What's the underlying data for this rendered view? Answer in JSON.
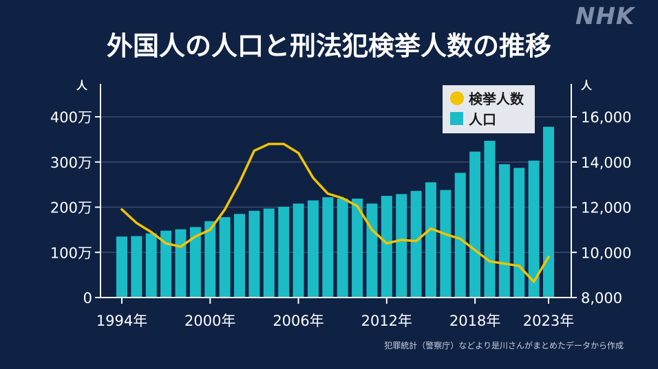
{
  "logo": "NHK",
  "title": "外国人の人口と刑法犯検挙人数の推移",
  "source": "犯罪統計（警察庁）などより是川さんがまとめたデータから作成",
  "colors": {
    "background": "#0f2244",
    "bars": "#1bbcc6",
    "line": "#f2c300",
    "axis": "#ffffff",
    "grid": "#3a4d6e",
    "legend_bg": "#e4e8ee"
  },
  "chart_data": {
    "type": "bar+line",
    "categories": [
      "1994年",
      "1995年",
      "1996年",
      "1997年",
      "1998年",
      "1999年",
      "2000年",
      "2001年",
      "2002年",
      "2003年",
      "2004年",
      "2005年",
      "2006年",
      "2007年",
      "2008年",
      "2009年",
      "2010年",
      "2011年",
      "2012年",
      "2013年",
      "2014年",
      "2015年",
      "2016年",
      "2017年",
      "2018年",
      "2019年",
      "2020年",
      "2021年",
      "2022年",
      "2023年"
    ],
    "x_tick_labels": [
      {
        "index": 0,
        "label": "1994年"
      },
      {
        "index": 6,
        "label": "2000年"
      },
      {
        "index": 12,
        "label": "2006年"
      },
      {
        "index": 18,
        "label": "2012年"
      },
      {
        "index": 24,
        "label": "2018年"
      },
      {
        "index": 29,
        "label": "2023年"
      }
    ],
    "y_left": {
      "unit": "人",
      "range": [
        0,
        4500000
      ],
      "ticks": [
        {
          "value": 0,
          "label": "0"
        },
        {
          "value": 1000000,
          "label": "100万"
        },
        {
          "value": 2000000,
          "label": "200万"
        },
        {
          "value": 3000000,
          "label": "300万"
        },
        {
          "value": 4000000,
          "label": "400万"
        }
      ]
    },
    "y_right": {
      "unit": "人",
      "range": [
        8000,
        17000
      ],
      "ticks": [
        {
          "value": 8000,
          "label": "8,000"
        },
        {
          "value": 10000,
          "label": "10,000"
        },
        {
          "value": 12000,
          "label": "12,000"
        },
        {
          "value": 14000,
          "label": "14,000"
        },
        {
          "value": 16000,
          "label": "16,000"
        }
      ]
    },
    "series": [
      {
        "name": "人口",
        "kind": "bar",
        "axis": "left",
        "values": [
          1350000,
          1360000,
          1420000,
          1480000,
          1510000,
          1560000,
          1690000,
          1780000,
          1850000,
          1920000,
          1970000,
          2010000,
          2080000,
          2150000,
          2220000,
          2190000,
          2190000,
          2080000,
          2250000,
          2290000,
          2360000,
          2550000,
          2380000,
          2760000,
          3230000,
          3470000,
          2950000,
          2870000,
          3030000,
          3780000
        ]
      },
      {
        "name": "検挙人数",
        "kind": "line",
        "axis": "right",
        "values": [
          11900,
          11300,
          10900,
          10400,
          10250,
          10700,
          11000,
          11900,
          13100,
          14500,
          14800,
          14800,
          14400,
          13300,
          12600,
          12400,
          12050,
          11000,
          10400,
          10550,
          10500,
          11050,
          10800,
          10600,
          10100,
          9600,
          9500,
          9400,
          8700,
          9800
        ]
      }
    ],
    "legend": {
      "placement": "top-right",
      "items": [
        {
          "label": "検挙人数",
          "marker": "circle"
        },
        {
          "label": "人口",
          "marker": "square"
        }
      ]
    },
    "grid": true
  }
}
